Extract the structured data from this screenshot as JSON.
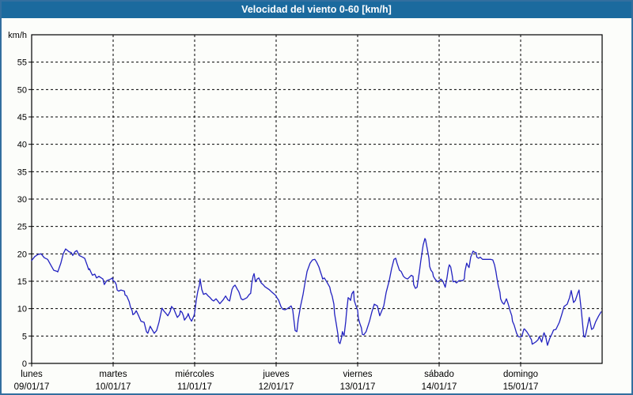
{
  "window": {
    "title": "Velocidad del viento 0-60 [km/h]"
  },
  "colors": {
    "title_bar_bg": "#1b6a9e",
    "title_text": "#ffffff",
    "outer_border": "#336f9f",
    "background": "#fcfdfa",
    "grid": "#000000",
    "line": "#2222c0"
  },
  "chart_data": {
    "type": "line",
    "title": "Velocidad del viento 0-60 [km/h]",
    "ylabel": "km/h",
    "ylim": [
      0,
      60
    ],
    "xlim_hours": [
      0,
      168
    ],
    "grid": "dashed",
    "legend_position": "none",
    "yticks": [
      0,
      5,
      10,
      15,
      20,
      25,
      30,
      35,
      40,
      45,
      50,
      55
    ],
    "x_day_labels": [
      {
        "hour": 0,
        "day": "lunes",
        "date": "09/01/17"
      },
      {
        "hour": 24,
        "day": "martes",
        "date": "10/01/17"
      },
      {
        "hour": 48,
        "day": "miércoles",
        "date": "11/01/17"
      },
      {
        "hour": 72,
        "day": "jueves",
        "date": "12/01/17"
      },
      {
        "hour": 96,
        "day": "viernes",
        "date": "13/01/17"
      },
      {
        "hour": 120,
        "day": "sábado",
        "date": "14/01/17"
      },
      {
        "hour": 144,
        "day": "domingo",
        "date": "15/01/17"
      }
    ],
    "series": [
      {
        "name": "Velocidad del viento",
        "units": "km/h",
        "color": "#2222c0",
        "points": [
          [
            0,
            18.8
          ],
          [
            0.9,
            19.5
          ],
          [
            1.9,
            19.9
          ],
          [
            2.8,
            20
          ],
          [
            3.7,
            19.3
          ],
          [
            4.7,
            19
          ],
          [
            5.6,
            18
          ],
          [
            6.5,
            17
          ],
          [
            7.5,
            16.8
          ],
          [
            7.7,
            16.7
          ],
          [
            8.6,
            18.3
          ],
          [
            9.3,
            20
          ],
          [
            10,
            20.9
          ],
          [
            11,
            20.4
          ],
          [
            11.7,
            20.2
          ],
          [
            12.1,
            19.7
          ],
          [
            12.8,
            20.4
          ],
          [
            13.3,
            20.6
          ],
          [
            14,
            19.7
          ],
          [
            14.7,
            19.5
          ],
          [
            15.6,
            19.2
          ],
          [
            16.3,
            18
          ],
          [
            16.8,
            17.1
          ],
          [
            17,
            17.3
          ],
          [
            17.5,
            16.6
          ],
          [
            17.9,
            16.1
          ],
          [
            18.6,
            16.3
          ],
          [
            19.1,
            15.6
          ],
          [
            19.8,
            15.9
          ],
          [
            21,
            15.4
          ],
          [
            21.4,
            14.4
          ],
          [
            21.7,
            14.7
          ],
          [
            22.1,
            15.1
          ],
          [
            23.3,
            15.4
          ],
          [
            23.8,
            15.6
          ],
          [
            24,
            15.1
          ],
          [
            24.5,
            14.9
          ],
          [
            24.9,
            14.4
          ],
          [
            25.2,
            13.4
          ],
          [
            25.6,
            13.2
          ],
          [
            26.3,
            13.4
          ],
          [
            27.3,
            13.2
          ],
          [
            27.5,
            12.5
          ],
          [
            28,
            12.3
          ],
          [
            28.7,
            11.3
          ],
          [
            29.1,
            10.3
          ],
          [
            29.6,
            9.6
          ],
          [
            29.8,
            8.9
          ],
          [
            30.3,
            9.1
          ],
          [
            30.8,
            9.6
          ],
          [
            31.5,
            8.7
          ],
          [
            32.2,
            7.7
          ],
          [
            33.1,
            7.5
          ],
          [
            33.8,
            5.8
          ],
          [
            34.2,
            5.5
          ],
          [
            34.9,
            6.8
          ],
          [
            36.1,
            5.5
          ],
          [
            36.8,
            6
          ],
          [
            37.5,
            7.5
          ],
          [
            38,
            9
          ],
          [
            38.4,
            10.1
          ],
          [
            38.9,
            9.6
          ],
          [
            39.6,
            9.1
          ],
          [
            40.1,
            8.7
          ],
          [
            40.8,
            9.5
          ],
          [
            41.2,
            10.4
          ],
          [
            41.9,
            9.9
          ],
          [
            42.4,
            9.1
          ],
          [
            42.9,
            8.4
          ],
          [
            43.6,
            8.9
          ],
          [
            43.8,
            9.6
          ],
          [
            44.3,
            9.3
          ],
          [
            44.7,
            8.7
          ],
          [
            45,
            7.9
          ],
          [
            45.9,
            8.7
          ],
          [
            46.1,
            9.1
          ],
          [
            46.6,
            8.2
          ],
          [
            47.1,
            7.7
          ],
          [
            47.8,
            8.7
          ],
          [
            48,
            9.2
          ],
          [
            48.5,
            11.6
          ],
          [
            48.9,
            13.1
          ],
          [
            49.4,
            14.3
          ],
          [
            49.6,
            15.4
          ],
          [
            50.1,
            13.5
          ],
          [
            50.6,
            12.6
          ],
          [
            51.3,
            12.8
          ],
          [
            52,
            12.3
          ],
          [
            52.4,
            12.1
          ],
          [
            53.1,
            11.6
          ],
          [
            53.6,
            11.4
          ],
          [
            54.3,
            11.8
          ],
          [
            54.8,
            11.4
          ],
          [
            55.4,
            10.9
          ],
          [
            56.4,
            11.6
          ],
          [
            57.1,
            12.3
          ],
          [
            57.8,
            11.6
          ],
          [
            58.3,
            11.4
          ],
          [
            59,
            13.5
          ],
          [
            59.4,
            14
          ],
          [
            59.9,
            14.3
          ],
          [
            60.6,
            13.5
          ],
          [
            61,
            13.1
          ],
          [
            61.7,
            11.8
          ],
          [
            62.2,
            11.6
          ],
          [
            63.4,
            12
          ],
          [
            64.1,
            12.6
          ],
          [
            64.5,
            12.8
          ],
          [
            64.8,
            14.5
          ],
          [
            65.2,
            15.9
          ],
          [
            65.5,
            16.4
          ],
          [
            65.9,
            14.9
          ],
          [
            66.4,
            15.4
          ],
          [
            66.9,
            15.6
          ],
          [
            67.6,
            14.7
          ],
          [
            68.3,
            14.3
          ],
          [
            68.7,
            14
          ],
          [
            69.9,
            13.5
          ],
          [
            70.6,
            13.1
          ],
          [
            71.5,
            12.6
          ],
          [
            72,
            12.3
          ],
          [
            72.2,
            12
          ],
          [
            72.7,
            11.6
          ],
          [
            73.4,
            10.4
          ],
          [
            73.9,
            9.9
          ],
          [
            74.6,
            9.8
          ],
          [
            75.3,
            10
          ],
          [
            76,
            10.3
          ],
          [
            76.4,
            10.5
          ],
          [
            76.9,
            9.7
          ],
          [
            77.6,
            6
          ],
          [
            78.1,
            5.8
          ],
          [
            78.5,
            8
          ],
          [
            79.2,
            10.5
          ],
          [
            79.9,
            12.5
          ],
          [
            80.4,
            14.4
          ],
          [
            81.1,
            16.8
          ],
          [
            82,
            18.3
          ],
          [
            82.7,
            18.9
          ],
          [
            83.4,
            19
          ],
          [
            83.9,
            18.5
          ],
          [
            84.6,
            17.6
          ],
          [
            85,
            16.8
          ],
          [
            85.5,
            15.9
          ],
          [
            85.7,
            15.4
          ],
          [
            86.2,
            15.6
          ],
          [
            86.9,
            14.9
          ],
          [
            87.8,
            13.9
          ],
          [
            88.1,
            13
          ],
          [
            88.5,
            12.3
          ],
          [
            89,
            10.8
          ],
          [
            89.2,
            9.1
          ],
          [
            89.7,
            7.2
          ],
          [
            90.2,
            5.3
          ],
          [
            90.4,
            3.9
          ],
          [
            90.8,
            3.6
          ],
          [
            91.3,
            4.8
          ],
          [
            91.5,
            5.8
          ],
          [
            92,
            5
          ],
          [
            92.5,
            7.7
          ],
          [
            92.7,
            9.1
          ],
          [
            93.2,
            12
          ],
          [
            93.6,
            11.8
          ],
          [
            93.9,
            11.5
          ],
          [
            94.3,
            12.7
          ],
          [
            94.8,
            13.2
          ],
          [
            95,
            11.5
          ],
          [
            95.5,
            10.5
          ],
          [
            96,
            9.7
          ],
          [
            96.2,
            8.2
          ],
          [
            96.7,
            7.2
          ],
          [
            97.1,
            6.5
          ],
          [
            97.4,
            5.3
          ],
          [
            97.8,
            5.2
          ],
          [
            98.5,
            5.8
          ],
          [
            99.5,
            7.7
          ],
          [
            100.2,
            9.4
          ],
          [
            100.9,
            10.8
          ],
          [
            101.8,
            10.5
          ],
          [
            102.5,
            8.7
          ],
          [
            103.7,
            10.5
          ],
          [
            104.4,
            13
          ],
          [
            105.3,
            15.1
          ],
          [
            106,
            17.3
          ],
          [
            106.7,
            19
          ],
          [
            107.2,
            19.2
          ],
          [
            107.6,
            18.3
          ],
          [
            108.3,
            17
          ],
          [
            108.8,
            16.8
          ],
          [
            109.5,
            15.9
          ],
          [
            110,
            15.6
          ],
          [
            110.7,
            15.4
          ],
          [
            111.8,
            16.1
          ],
          [
            112.3,
            15.9
          ],
          [
            112.5,
            14.4
          ],
          [
            113,
            13.7
          ],
          [
            113.5,
            13.9
          ],
          [
            114.2,
            16.8
          ],
          [
            114.6,
            18.7
          ],
          [
            115.3,
            21.6
          ],
          [
            115.8,
            22.8
          ],
          [
            116,
            22.6
          ],
          [
            116.5,
            20.9
          ],
          [
            117,
            19.2
          ],
          [
            117.2,
            17.7
          ],
          [
            117.6,
            17
          ],
          [
            118.1,
            16.6
          ],
          [
            118.3,
            15.9
          ],
          [
            118.8,
            15.4
          ],
          [
            119.5,
            14.9
          ],
          [
            120,
            15.1
          ],
          [
            120.5,
            15.4
          ],
          [
            121.1,
            15
          ],
          [
            121.6,
            14.2
          ],
          [
            121.8,
            13.9
          ],
          [
            122.3,
            15.6
          ],
          [
            122.7,
            17.3
          ],
          [
            123,
            18
          ],
          [
            123.4,
            17.6
          ],
          [
            123.9,
            15.9
          ],
          [
            124.1,
            14.9
          ],
          [
            124.6,
            15
          ],
          [
            125.1,
            14.7
          ],
          [
            125.8,
            15.1
          ],
          [
            126.9,
            15.1
          ],
          [
            127.4,
            15.4
          ],
          [
            127.6,
            16.8
          ],
          [
            128.1,
            18.3
          ],
          [
            128.6,
            17.7
          ],
          [
            128.8,
            17.5
          ],
          [
            129.3,
            19.4
          ],
          [
            130,
            20.5
          ],
          [
            130.4,
            20.3
          ],
          [
            130.9,
            20.2
          ],
          [
            131.1,
            19.4
          ],
          [
            131.6,
            19.2
          ],
          [
            132.1,
            19.4
          ],
          [
            132.8,
            19
          ],
          [
            133.9,
            19
          ],
          [
            135.1,
            19
          ],
          [
            135.8,
            18.9
          ],
          [
            136.3,
            18
          ],
          [
            136.7,
            16.8
          ],
          [
            137,
            15.6
          ],
          [
            137.4,
            14.2
          ],
          [
            137.9,
            13
          ],
          [
            138.1,
            11.8
          ],
          [
            138.6,
            11.1
          ],
          [
            139.1,
            10.8
          ],
          [
            139.8,
            11.8
          ],
          [
            140.2,
            11.1
          ],
          [
            140.5,
            10.5
          ],
          [
            140.9,
            9.6
          ],
          [
            141.4,
            8.7
          ],
          [
            141.6,
            7.7
          ],
          [
            142.1,
            7
          ],
          [
            142.8,
            5.5
          ],
          [
            143.3,
            4.9
          ],
          [
            144,
            4.8
          ],
          [
            144.4,
            5
          ],
          [
            144.9,
            6.2
          ],
          [
            145.1,
            6.3
          ],
          [
            145.8,
            5.8
          ],
          [
            146.3,
            5.3
          ],
          [
            147.2,
            4.3
          ],
          [
            147.4,
            3.5
          ],
          [
            148.4,
            3.9
          ],
          [
            149.1,
            4.3
          ],
          [
            149.5,
            4.9
          ],
          [
            150.2,
            3.9
          ],
          [
            150.7,
            5.3
          ],
          [
            150.9,
            5.6
          ],
          [
            151.4,
            4.8
          ],
          [
            151.9,
            3.3
          ],
          [
            152.6,
            4.6
          ],
          [
            153.3,
            5.5
          ],
          [
            153.7,
            6.1
          ],
          [
            154.4,
            6.2
          ],
          [
            155.4,
            7.5
          ],
          [
            156.1,
            8.9
          ],
          [
            156.8,
            10.4
          ],
          [
            157.7,
            10.8
          ],
          [
            158.4,
            12
          ],
          [
            158.9,
            13.3
          ],
          [
            159.6,
            11.1
          ],
          [
            160.1,
            11.5
          ],
          [
            160.8,
            12.8
          ],
          [
            161.2,
            13.4
          ],
          [
            161.9,
            9.5
          ],
          [
            162.6,
            4.9
          ],
          [
            163,
            4.8
          ],
          [
            163.7,
            6.8
          ],
          [
            164.2,
            8.4
          ],
          [
            164.9,
            6.2
          ],
          [
            165.4,
            6.4
          ],
          [
            166.1,
            7.6
          ],
          [
            167,
            8.7
          ],
          [
            167.7,
            9.4
          ]
        ]
      }
    ]
  }
}
